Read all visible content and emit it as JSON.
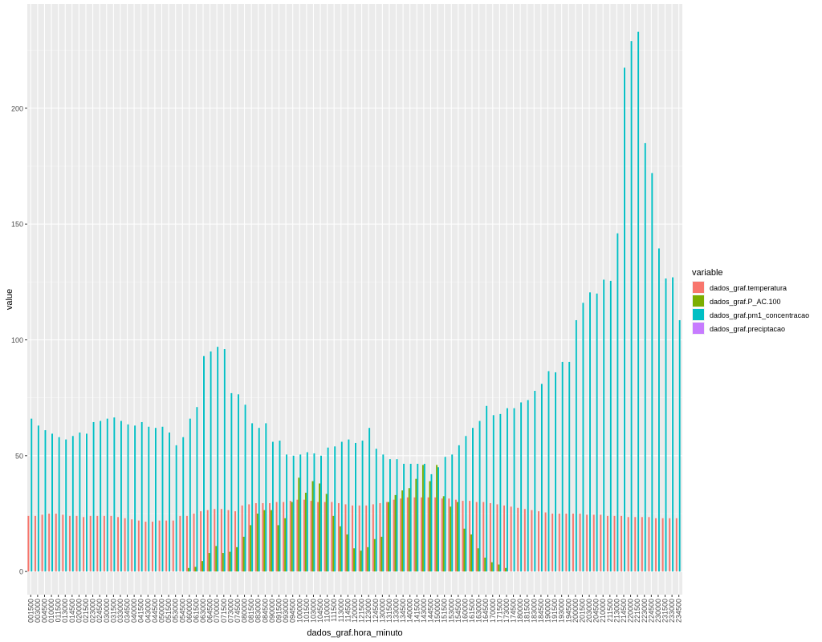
{
  "chart_data": {
    "type": "bar",
    "xlabel": "dados_graf.hora_minuto",
    "ylabel": "value",
    "ylim": [
      -10,
      245
    ],
    "yticks": [
      0,
      50,
      100,
      150,
      200
    ],
    "grid": true,
    "legend_title": "variable",
    "legend_position": "right",
    "categories": [
      "001500",
      "003000",
      "004500",
      "010000",
      "011500",
      "013000",
      "014500",
      "020000",
      "021500",
      "023000",
      "024500",
      "030000",
      "031500",
      "033000",
      "034500",
      "040000",
      "041500",
      "043000",
      "044500",
      "050000",
      "051500",
      "053000",
      "054500",
      "060000",
      "061500",
      "063000",
      "064500",
      "070000",
      "071500",
      "073000",
      "074500",
      "080000",
      "081500",
      "083000",
      "084500",
      "090000",
      "091500",
      "093000",
      "094500",
      "100000",
      "101500",
      "103000",
      "104500",
      "110000",
      "111500",
      "113000",
      "114500",
      "120000",
      "121500",
      "123000",
      "124500",
      "130000",
      "131500",
      "133000",
      "134500",
      "140000",
      "141500",
      "143000",
      "144500",
      "150000",
      "151500",
      "153000",
      "154500",
      "160000",
      "161500",
      "163000",
      "164500",
      "170000",
      "171500",
      "173000",
      "174500",
      "180000",
      "181500",
      "183000",
      "184500",
      "190000",
      "191500",
      "193000",
      "194500",
      "200000",
      "201500",
      "203000",
      "204500",
      "210000",
      "211500",
      "213000",
      "214500",
      "220000",
      "221500",
      "223000",
      "224500",
      "230000",
      "231500",
      "233000",
      "234500"
    ],
    "tick_labels": [
      "001500",
      "003000",
      "004500",
      "010000",
      "011500",
      "013000",
      "014500",
      "020000",
      "021500",
      "023000",
      "024500",
      "030000",
      "031500",
      "033000",
      "034500",
      "040000",
      "041500",
      "043000",
      "044500",
      "050000",
      "051500",
      "053000",
      "054500",
      "060000",
      "061500",
      "063000",
      "064500",
      "070000",
      "071500",
      "073000",
      "074500",
      "080000",
      "081500",
      "083000",
      "084500",
      "090000",
      "091500",
      "093000",
      "094500",
      "100000",
      "101500",
      "103000",
      "104500",
      "110000",
      "111500",
      "113000",
      "114500",
      "120000",
      "121500",
      "123000",
      "124500",
      "130000",
      "131500",
      "133000",
      "134500",
      "140000",
      "141500",
      "143000",
      "144500",
      "150000",
      "151500",
      "153000",
      "154500",
      "160000",
      "161500",
      "163000",
      "164500",
      "170000",
      "171500",
      "173000",
      "174500",
      "180000",
      "181500",
      "183000",
      "184500",
      "190000",
      "191500",
      "193000",
      "194500",
      "200000",
      "201500",
      "203000",
      "204500",
      "210000",
      "211500",
      "213000",
      "214500",
      "220000",
      "221500",
      "223000",
      "224500",
      "230000",
      "231500",
      "233000",
      "234500"
    ],
    "series": [
      {
        "name": "dados_graf.temperatura",
        "color": "#F8766D",
        "values": [
          24,
          24,
          24.5,
          25,
          25,
          24.5,
          24,
          24,
          23.5,
          24,
          24,
          24,
          24,
          23.5,
          23,
          22.5,
          22,
          21.5,
          21.5,
          22,
          22,
          22,
          24,
          24,
          25,
          26,
          26.5,
          27,
          27,
          26.5,
          26,
          28.5,
          29,
          29.5,
          29.5,
          29.5,
          30,
          30,
          30.5,
          31,
          31,
          30.5,
          30,
          30,
          30,
          29.5,
          29,
          28.5,
          28.5,
          28.5,
          29,
          29.5,
          30,
          31,
          31.5,
          32,
          32,
          32,
          32,
          32,
          31.5,
          31.5,
          31,
          30.5,
          30.5,
          30,
          30,
          29.5,
          29,
          28.5,
          28,
          27.5,
          27,
          26.5,
          26,
          25.5,
          25,
          25,
          25,
          25,
          25,
          24.5,
          24.5,
          24.5,
          24,
          24,
          24,
          23.5,
          23.5,
          23.5,
          23.5,
          23,
          23,
          23,
          23
        ]
      },
      {
        "name": "dados_graf.P_AC.100",
        "color": "#7CAE00",
        "values": [
          0,
          0,
          0,
          0,
          0,
          0,
          0,
          0,
          0,
          0,
          0,
          0,
          0,
          0,
          0,
          0,
          0,
          0,
          0,
          0,
          0,
          0,
          0,
          1.5,
          2,
          4.5,
          8,
          11,
          8,
          8.5,
          10.5,
          15,
          20,
          25,
          26.5,
          26.5,
          20,
          23,
          30,
          40.5,
          34,
          39,
          38,
          33.5,
          24,
          19.5,
          16,
          10,
          9,
          10.5,
          14,
          15,
          30,
          33,
          35,
          36,
          40,
          46,
          39,
          46,
          32.5,
          28,
          30,
          18.5,
          16,
          10,
          6,
          4,
          3,
          1.5,
          0,
          0,
          0,
          0,
          0,
          0,
          0,
          0,
          0,
          0,
          0,
          0,
          0,
          0,
          0,
          0,
          0,
          0,
          0,
          0,
          0,
          0,
          0,
          0,
          0
        ]
      },
      {
        "name": "dados_graf.pm1_concentracao",
        "color": "#00BFC4",
        "values": [
          66,
          63,
          61,
          59.5,
          58,
          57,
          58.5,
          60,
          59.5,
          64.5,
          65,
          66,
          66.5,
          65,
          63.5,
          63,
          64.5,
          62.5,
          62,
          62.5,
          60,
          54.5,
          58,
          66,
          71,
          93,
          95,
          97,
          96,
          77,
          76.5,
          72,
          64,
          62,
          64,
          56,
          56.5,
          50.5,
          50,
          50.5,
          51.5,
          51,
          50,
          53.5,
          54,
          56,
          57,
          55.5,
          56.5,
          62,
          53,
          50.5,
          48.5,
          48.5,
          46.5,
          46.5,
          46.5,
          46.5,
          42,
          45,
          49.5,
          50.5,
          54.5,
          58.5,
          62,
          65,
          71.5,
          67.5,
          68,
          70.5,
          70.5,
          73,
          74,
          78,
          81,
          86.5,
          86,
          90.5,
          90.5,
          108.5,
          116,
          120.5,
          120,
          126,
          125.5,
          146,
          217.5,
          229,
          233,
          185,
          172,
          139.5,
          126.5,
          127,
          108.5
        ]
      },
      {
        "name": "dados_graf.preciptacao",
        "color": "#C77CFF",
        "values": [
          0,
          0,
          0,
          0,
          0,
          0,
          0,
          0,
          0,
          0,
          0,
          0,
          0,
          0,
          0,
          0,
          0,
          0,
          0,
          0,
          0,
          0,
          0,
          0,
          0,
          0,
          0,
          0,
          0,
          0,
          0,
          0,
          0,
          0,
          0,
          0,
          0,
          0,
          0,
          0,
          0,
          0,
          0,
          0,
          0,
          0,
          0,
          0,
          0,
          0,
          0,
          0,
          0,
          0,
          0,
          0,
          0,
          0,
          0,
          0,
          0,
          0,
          0,
          0,
          0,
          0,
          0,
          0,
          0,
          0,
          0,
          0,
          0,
          0,
          0,
          0,
          0,
          0,
          0,
          0,
          0,
          0,
          0,
          0,
          0,
          0,
          0,
          0,
          0,
          0,
          0,
          0,
          0,
          0,
          0
        ]
      }
    ]
  }
}
